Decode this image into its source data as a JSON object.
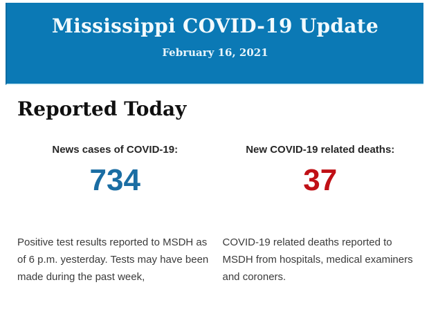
{
  "page": {
    "background_color": "#ffffff"
  },
  "header": {
    "title": "Mississippi COVID-19 Update",
    "date": "February 16, 2021",
    "background_color": "#0b79b5",
    "title_color": "#f2fafd"
  },
  "report": {
    "heading": "Reported Today",
    "stats": [
      {
        "label": "News cases of COVID-19:",
        "value": "734",
        "value_color": "#1a6da3",
        "description": "Positive test results reported to MSDH as of 6 p.m. yesterday. Tests may have been made during the past week,"
      },
      {
        "label": "New COVID-19 related deaths:",
        "value": "37",
        "value_color": "#c01016",
        "description": "COVID-19 related deaths reported to MSDH from hospitals, medical examiners and coroners."
      }
    ]
  }
}
